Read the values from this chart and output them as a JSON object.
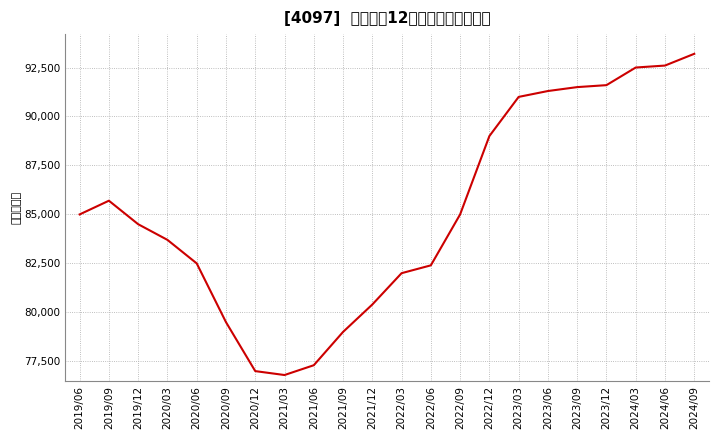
{
  "title": "[4097]  売上高の12か月移動合計の推移",
  "ylabel": "（百万円）",
  "line_color": "#cc0000",
  "background_color": "#ffffff",
  "plot_background_color": "#ffffff",
  "grid_color": "#aaaaaa",
  "dates": [
    "2019/06",
    "2019/09",
    "2019/12",
    "2020/03",
    "2020/06",
    "2020/09",
    "2020/12",
    "2021/03",
    "2021/06",
    "2021/09",
    "2021/12",
    "2022/03",
    "2022/06",
    "2022/09",
    "2022/12",
    "2023/03",
    "2023/06",
    "2023/09",
    "2023/12",
    "2024/03",
    "2024/06",
    "2024/09"
  ],
  "values": [
    85000,
    85700,
    84500,
    83700,
    82500,
    79500,
    77000,
    76800,
    77300,
    79000,
    80400,
    82000,
    82400,
    85000,
    89000,
    91000,
    91300,
    91500,
    91600,
    92500,
    92600,
    93200
  ],
  "yticks": [
    77500,
    80000,
    82500,
    85000,
    87500,
    90000,
    92500
  ],
  "ylim": [
    76500,
    94200
  ],
  "title_fontsize": 11,
  "tick_fontsize": 7.5,
  "ylabel_fontsize": 8
}
